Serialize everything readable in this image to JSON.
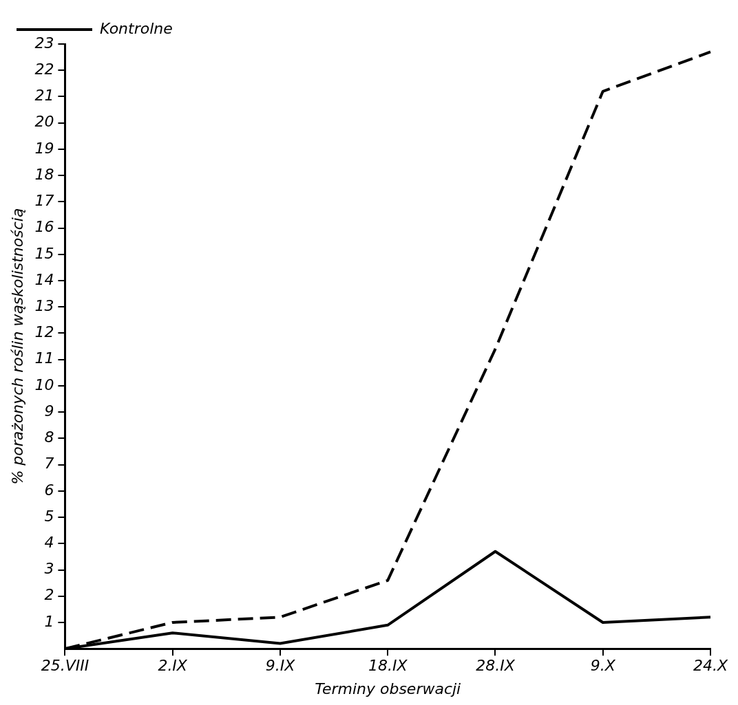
{
  "chart_data": {
    "type": "line",
    "xlabel": "Terminy obserwacji",
    "ylabel": "% porażonych roślin wąskolistnością",
    "categories": [
      "25.VIII",
      "2.IX",
      "9.IX",
      "18.IX",
      "28.IX",
      "9.X",
      "24.X"
    ],
    "series": [
      {
        "color": "#000000",
        "line_style": "solid",
        "values": [
          0,
          0.6,
          0.2,
          0.9,
          3.7,
          1.0,
          1.2
        ]
      },
      {
        "name": "Kontrolne",
        "color": "#000000",
        "line_style": "dashed",
        "values": [
          0,
          1.0,
          1.2,
          2.6,
          11.4,
          21.2,
          22.7
        ]
      }
    ],
    "ylim": [
      0,
      23
    ],
    "yticks": [
      1,
      2,
      3,
      4,
      5,
      6,
      7,
      8,
      9,
      10,
      11,
      12,
      13,
      14,
      15,
      16,
      17,
      18,
      19,
      20,
      21,
      22,
      23
    ],
    "grid": false,
    "legend": "top left",
    "marker": "none"
  }
}
